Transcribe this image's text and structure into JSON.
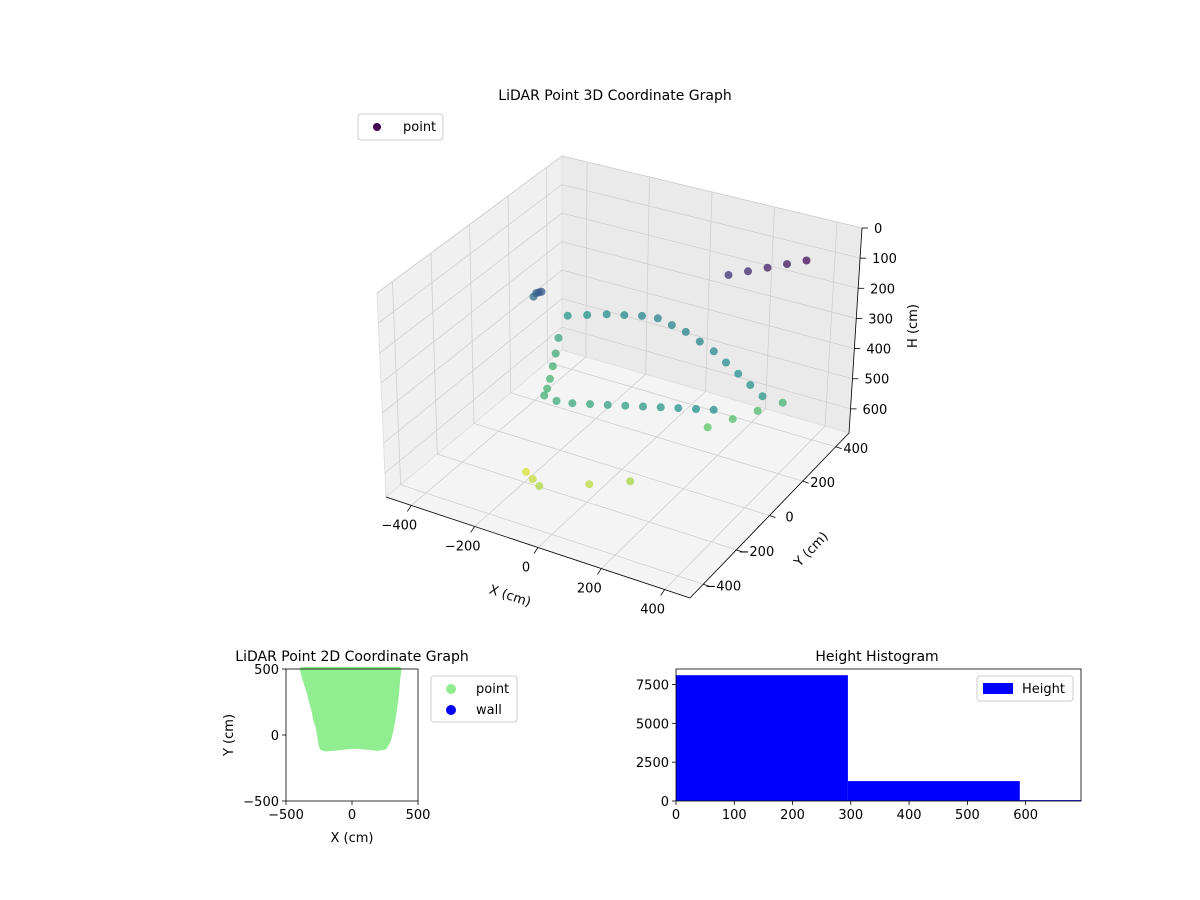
{
  "chart_data": [
    {
      "type": "scatter",
      "projection": "3d",
      "title": "LiDAR Point 3D Coordinate Graph",
      "xlabel": "X (cm)",
      "ylabel": "Y (cm)",
      "zlabel": "H (cm)",
      "x_ticks": [
        "−400",
        "−200",
        "0",
        "200",
        "400"
      ],
      "y_ticks": [
        "−400",
        "−200",
        "0",
        "200",
        "400"
      ],
      "z_ticks": [
        "0",
        "100",
        "200",
        "300",
        "400",
        "500",
        "600"
      ],
      "xlim": [
        -480,
        480
      ],
      "ylim": [
        -480,
        480
      ],
      "zlim": [
        0,
        680
      ],
      "z_inverted": true,
      "colormap": "viridis",
      "legend": {
        "placement": "upper-left",
        "entries": [
          {
            "name": "point",
            "color": "#440154"
          }
        ]
      },
      "series": [
        {
          "name": "point",
          "description_points": "dense wall shell plus scattered outliers",
          "points": [
            [
              -300,
              200,
              350
            ],
            [
              -250,
              220,
              340
            ],
            [
              -200,
              240,
              330
            ],
            [
              -150,
              250,
              320
            ],
            [
              -100,
              260,
              310
            ],
            [
              -50,
              260,
              300
            ],
            [
              0,
              250,
              300
            ],
            [
              50,
              240,
              300
            ],
            [
              100,
              230,
              310
            ],
            [
              150,
              220,
              320
            ],
            [
              200,
              200,
              330
            ],
            [
              250,
              180,
              340
            ],
            [
              300,
              160,
              350
            ],
            [
              350,
              140,
              360
            ],
            [
              -300,
              150,
              400
            ],
            [
              -280,
              100,
              420
            ],
            [
              -260,
              50,
              430
            ],
            [
              -240,
              0,
              440
            ],
            [
              -220,
              -50,
              440
            ],
            [
              -200,
              -100,
              430
            ],
            [
              -150,
              -120,
              420
            ],
            [
              -100,
              -120,
              410
            ],
            [
              -50,
              -110,
              400
            ],
            [
              0,
              -100,
              390
            ],
            [
              50,
              -90,
              380
            ],
            [
              100,
              -80,
              370
            ],
            [
              150,
              -70,
              360
            ],
            [
              200,
              -60,
              350
            ],
            [
              250,
              -50,
              340
            ],
            [
              300,
              -40,
              330
            ],
            [
              -350,
              100,
              250
            ],
            [
              -330,
              80,
              220
            ],
            [
              -310,
              60,
              200
            ],
            [
              -290,
              40,
              180
            ],
            [
              150,
              300,
              100
            ],
            [
              200,
              320,
              80
            ],
            [
              250,
              340,
              60
            ],
            [
              300,
              360,
              40
            ],
            [
              350,
              380,
              20
            ],
            [
              -100,
              -300,
              600
            ],
            [
              -150,
              -250,
              620
            ],
            [
              -200,
              -200,
              640
            ],
            [
              0,
              -200,
              610
            ],
            [
              100,
              -150,
              590
            ],
            [
              200,
              100,
              500
            ],
            [
              250,
              150,
              480
            ],
            [
              300,
              200,
              460
            ],
            [
              350,
              250,
              440
            ]
          ]
        }
      ]
    },
    {
      "type": "scatter",
      "title": "LiDAR Point 2D Coordinate Graph",
      "xlabel": "X (cm)",
      "ylabel": "Y (cm)",
      "xlim": [
        -500,
        500
      ],
      "ylim": [
        -500,
        500
      ],
      "x_ticks": [
        "−500",
        "0",
        "500"
      ],
      "y_ticks": [
        "−500",
        "0",
        "500"
      ],
      "legend": {
        "placement": "outside-right",
        "entries": [
          {
            "name": "point",
            "color": "#90ee90"
          },
          {
            "name": "wall",
            "color": "#0000ff"
          }
        ]
      },
      "series": [
        {
          "name": "point",
          "color": "#90ee90",
          "outline": [
            [
              -380,
              500
            ],
            [
              -360,
              420
            ],
            [
              -330,
              330
            ],
            [
              -310,
              250
            ],
            [
              -290,
              180
            ],
            [
              -280,
              120
            ],
            [
              -260,
              60
            ],
            [
              -250,
              0
            ],
            [
              -240,
              -60
            ],
            [
              -230,
              -100
            ],
            [
              -200,
              -110
            ],
            [
              -150,
              -105
            ],
            [
              -100,
              -100
            ],
            [
              -50,
              -95
            ],
            [
              0,
              -90
            ],
            [
              50,
              -90
            ],
            [
              100,
              -95
            ],
            [
              150,
              -100
            ],
            [
              200,
              -105
            ],
            [
              250,
              -95
            ],
            [
              280,
              -40
            ],
            [
              300,
              40
            ],
            [
              320,
              150
            ],
            [
              340,
              300
            ],
            [
              350,
              420
            ],
            [
              360,
              500
            ]
          ]
        },
        {
          "name": "wall",
          "color": "#0000ff",
          "points": []
        }
      ]
    },
    {
      "type": "bar",
      "subtype": "histogram",
      "title": "Height Histogram",
      "xlim": [
        0,
        695
      ],
      "ylim": [
        0,
        8500
      ],
      "x_ticks": [
        "0",
        "100",
        "200",
        "300",
        "400",
        "500",
        "600"
      ],
      "y_ticks": [
        "0",
        "2500",
        "5000",
        "7500"
      ],
      "legend": {
        "placement": "upper-right",
        "entries": [
          {
            "name": "Height",
            "color": "#0000ff"
          }
        ]
      },
      "series": [
        {
          "name": "Height",
          "color": "#0000ff",
          "bins": [
            {
              "start": 0,
              "end": 295,
              "count": 8100
            },
            {
              "start": 295,
              "end": 590,
              "count": 1280
            },
            {
              "start": 590,
              "end": 695,
              "count": 60
            }
          ]
        }
      ]
    }
  ]
}
